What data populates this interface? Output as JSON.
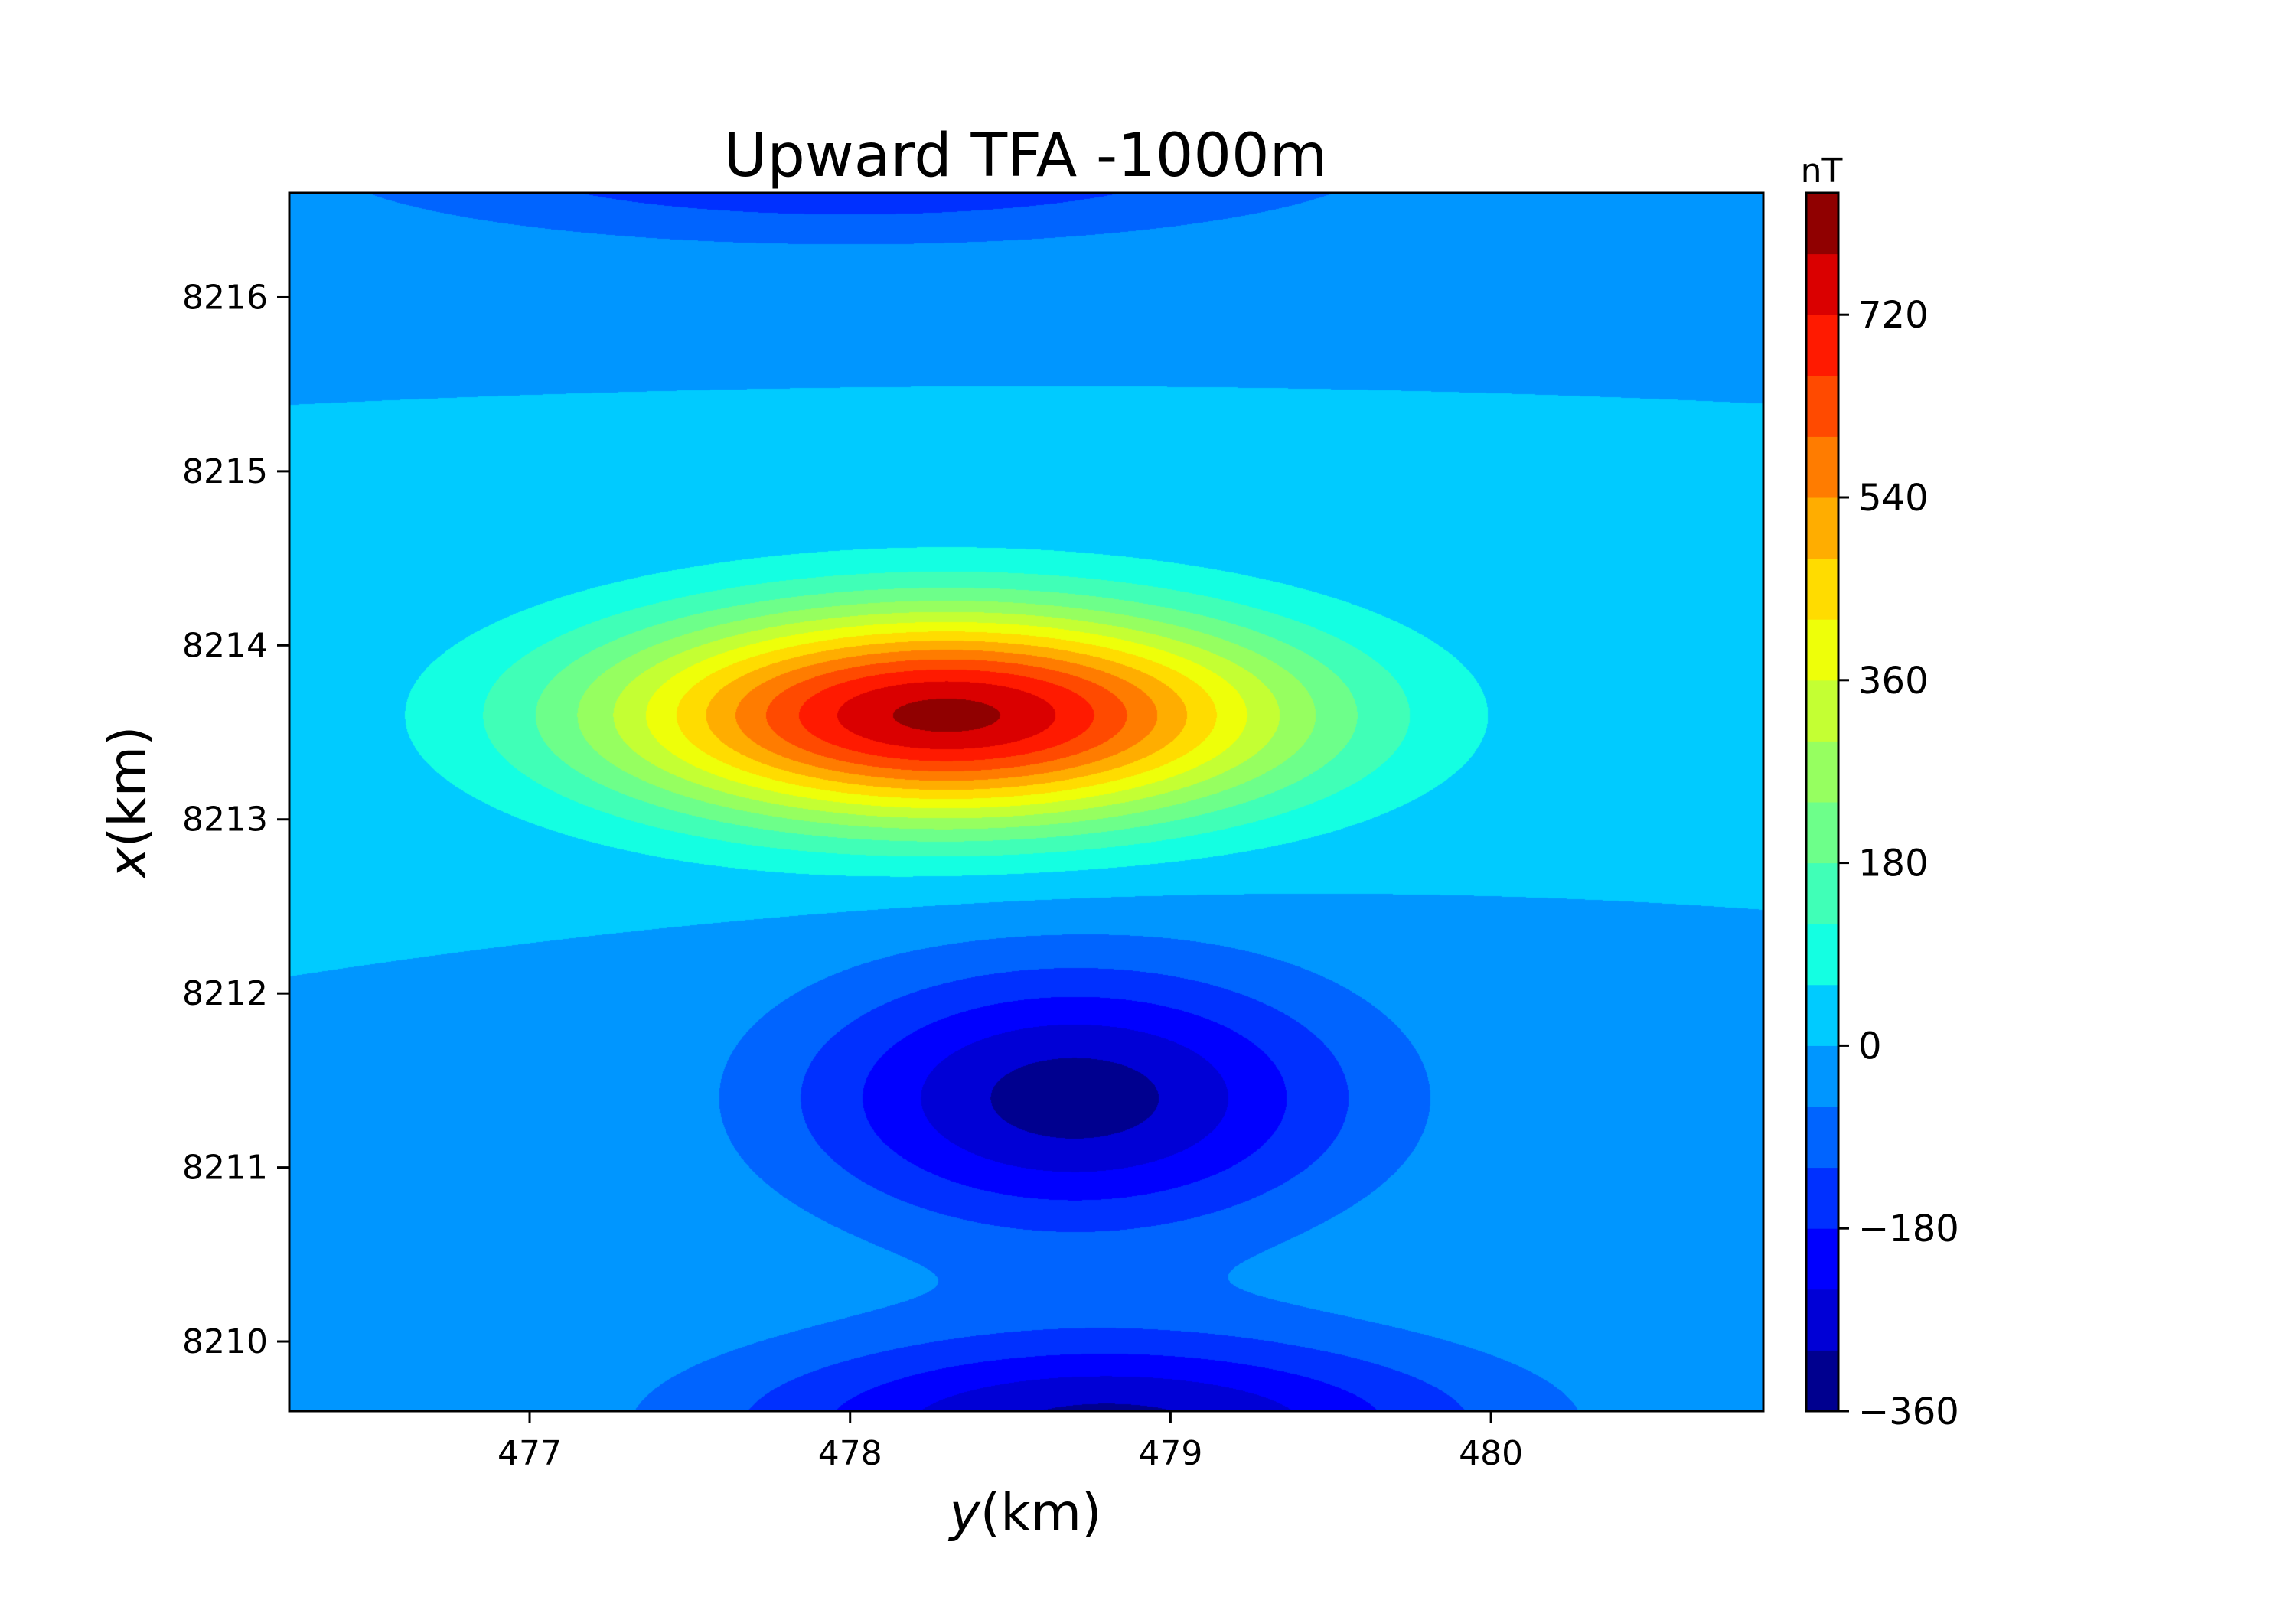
{
  "chart_data": {
    "type": "heatmap",
    "subtype": "filled-contour",
    "title": "Upward TFA -1000m",
    "xlabel_var": "y",
    "xlabel_unit": "(km)",
    "ylabel_var": "x",
    "ylabel_unit": "(km)",
    "xlim": [
      476.25,
      480.85
    ],
    "ylim": [
      8209.6,
      8216.6
    ],
    "xticks": [
      477,
      478,
      479,
      480
    ],
    "yticks": [
      8210,
      8211,
      8212,
      8213,
      8214,
      8215,
      8216
    ],
    "colorbar": {
      "label": "nT",
      "vmin": -360,
      "vmax": 840,
      "level_step": 60,
      "ticks": [
        -360,
        -180,
        0,
        180,
        360,
        540,
        720
      ],
      "tick_labels": [
        "−360",
        "−180",
        "0",
        "180",
        "360",
        "540",
        "720"
      ],
      "colors": [
        "#00008f",
        "#0000d6",
        "#0000ff",
        "#0030ff",
        "#0064ff",
        "#0096ff",
        "#00cbff",
        "#14ffe2",
        "#40ffb7",
        "#6dff8a",
        "#96ff60",
        "#c4ff33",
        "#eeff09",
        "#ffdc00",
        "#ffad00",
        "#ff7c00",
        "#ff4a00",
        "#ff1a00",
        "#da0000",
        "#900000"
      ]
    },
    "field_extrema": [
      {
        "kind": "max",
        "y": 478.3,
        "x": 8213.6,
        "value": 800
      },
      {
        "kind": "min",
        "y": 478.7,
        "x": 8211.4,
        "value": -330
      },
      {
        "kind": "min",
        "y": 478.8,
        "x": 8209.5,
        "value": -320
      },
      {
        "kind": "min",
        "y": 478.0,
        "x": 8216.8,
        "value": -200
      }
    ],
    "colormap": "jet"
  }
}
